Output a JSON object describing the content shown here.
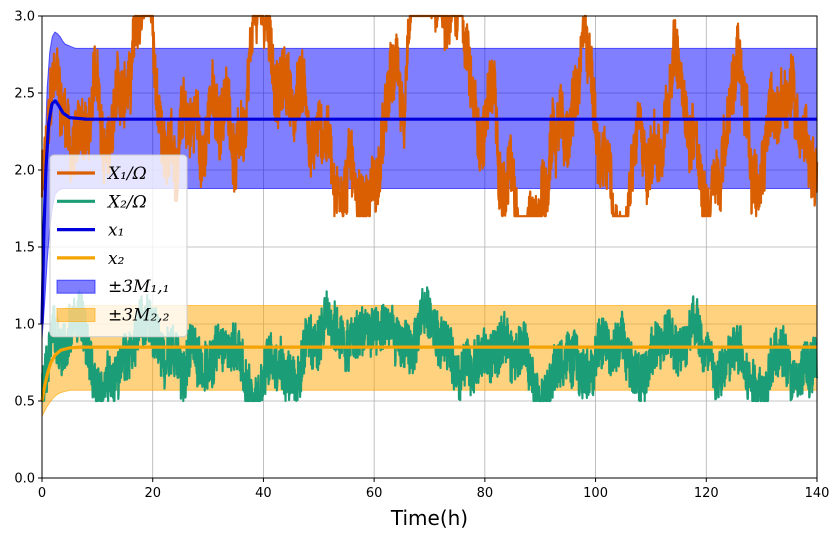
{
  "chart_data": {
    "type": "line",
    "title": "",
    "xlabel": "Time(h)",
    "ylabel": "",
    "xlim": [
      0,
      140
    ],
    "ylim": [
      0,
      3.0
    ],
    "xticks": [
      "0",
      "20",
      "40",
      "60",
      "80",
      "100",
      "120",
      "140"
    ],
    "yticks": [
      "0.0",
      "0.5",
      "1.0",
      "1.5",
      "2.0",
      "2.5",
      "3.0"
    ],
    "grid": true,
    "legend_position": "center-left",
    "legend": [
      {
        "label": "X₁/Ω",
        "kind": "line",
        "color": "#d95f02"
      },
      {
        "label": "X₂/Ω",
        "kind": "line",
        "color": "#1b9e77"
      },
      {
        "label": "x₁",
        "kind": "line",
        "color": "#0000dd"
      },
      {
        "label": "x₂",
        "kind": "line",
        "color": "#f5a300"
      },
      {
        "label": "±3M₁,₁",
        "kind": "band",
        "color": "#0000ff"
      },
      {
        "label": "±3M₂,₂",
        "kind": "band",
        "color": "#ffa500"
      }
    ],
    "series": [
      {
        "name": "X₁/Ω",
        "style": "noisy-line",
        "color": "#d95f02",
        "mean": 2.33,
        "range_observed": [
          1.7,
          3.0
        ]
      },
      {
        "name": "X₂/Ω",
        "style": "noisy-line",
        "color": "#1b9e77",
        "mean": 0.85,
        "range_observed": [
          0.5,
          1.32
        ]
      },
      {
        "name": "x₁",
        "style": "line",
        "color": "#0000dd",
        "points": [
          [
            0,
            1.0
          ],
          [
            0.3,
            1.55
          ],
          [
            0.7,
            2.0
          ],
          [
            1.2,
            2.3
          ],
          [
            1.8,
            2.43
          ],
          [
            2.4,
            2.45
          ],
          [
            3.0,
            2.42
          ],
          [
            3.8,
            2.37
          ],
          [
            5,
            2.34
          ],
          [
            8,
            2.33
          ],
          [
            140,
            2.33
          ]
        ]
      },
      {
        "name": "x₂",
        "style": "line",
        "color": "#f5a300",
        "points": [
          [
            0,
            0.5
          ],
          [
            0.5,
            0.6
          ],
          [
            1,
            0.68
          ],
          [
            1.6,
            0.75
          ],
          [
            2.4,
            0.8
          ],
          [
            3.4,
            0.83
          ],
          [
            5,
            0.845
          ],
          [
            7,
            0.85
          ],
          [
            140,
            0.85
          ]
        ]
      }
    ],
    "bands": [
      {
        "name": "±3M₁,₁",
        "color": "#0000ff",
        "upper": [
          [
            0,
            1.1
          ],
          [
            0.5,
            2.1
          ],
          [
            1,
            2.6
          ],
          [
            1.6,
            2.85
          ],
          [
            2.4,
            2.9
          ],
          [
            3.2,
            2.87
          ],
          [
            4,
            2.82
          ],
          [
            6,
            2.79
          ],
          [
            140,
            2.79
          ]
        ],
        "lower": [
          [
            0,
            0.9
          ],
          [
            0.5,
            1.15
          ],
          [
            1,
            1.45
          ],
          [
            1.6,
            1.7
          ],
          [
            2.4,
            1.85
          ],
          [
            3.5,
            1.88
          ],
          [
            140,
            1.88
          ]
        ]
      },
      {
        "name": "±3M₂,₂",
        "color": "#ffa500",
        "upper": [
          [
            0,
            0.6
          ],
          [
            1,
            0.85
          ],
          [
            2,
            1.0
          ],
          [
            3,
            1.08
          ],
          [
            5,
            1.12
          ],
          [
            140,
            1.12
          ]
        ],
        "lower": [
          [
            0,
            0.4
          ],
          [
            1,
            0.47
          ],
          [
            2,
            0.52
          ],
          [
            3,
            0.55
          ],
          [
            5,
            0.57
          ],
          [
            140,
            0.57
          ]
        ]
      }
    ]
  }
}
